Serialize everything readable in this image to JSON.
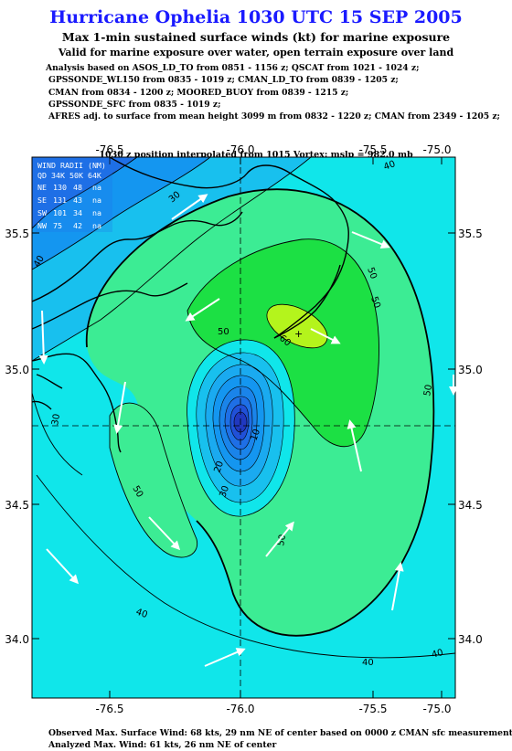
{
  "header": {
    "title": "Hurricane Ophelia 1030 UTC 15 SEP 2005",
    "subtitle": "Max 1-min sustained surface winds (kt) for marine exposure",
    "subtitle2": "Valid for marine exposure over water, open terrain exposure over land"
  },
  "analysis_lines": [
    "Analysis based on  ASOS_LD_TO from 0851 - 1156 z;  QSCAT from 1021 - 1024 z;",
    "GPSSONDE_WL150 from 0835 - 1019 z;  CMAN_LD_TO from 0839 - 1205 z;",
    "CMAN from 0834 - 1200 z;  MOORED_BUOY from 0839 - 1215 z;",
    "GPSSONDE_SFC from 0835 - 1019 z;",
    "AFRES adj. to surface from mean height 3099 m from 0832 - 1220 z;  CMAN from 2349 - 1205 z;"
  ],
  "vortex_line": "1030 z position interpolated from 1015 Vortex; mslp = 982.0 mb",
  "map": {
    "lon_ticks": [
      "-76.5",
      "-76.0",
      "-75.5",
      "-75.0"
    ],
    "lat_ticks": [
      "35.5",
      "35.0",
      "34.5",
      "34.0"
    ],
    "center": {
      "lon": -75.92,
      "lat": 34.78
    },
    "wind_radii": {
      "header1": "WIND RADII (NM)",
      "header2": "QD 34K 50K 64K",
      "rows": [
        {
          "quadrant": "NE",
          "r34": "130",
          "r50": "48",
          "r64": "na"
        },
        {
          "quadrant": "SE",
          "r34": "131",
          "r50": "43",
          "r64": "na"
        },
        {
          "quadrant": "SW",
          "r34": "101",
          "r50": "34",
          "r64": "na"
        },
        {
          "quadrant": "NW",
          "r34": "75",
          "r50": "42",
          "r64": "na"
        }
      ]
    },
    "contour_labels": [
      "40",
      "30",
      "40",
      "50",
      "50",
      "50",
      "60",
      "30",
      "50",
      "10",
      "20",
      "30",
      "50",
      "40",
      "40",
      "40",
      "50"
    ],
    "colors": {
      "deep_blue": "#1e6fe6",
      "mid_blue": "#1496f0",
      "light_blue": "#18c0ee",
      "cyan": "#10e6ea",
      "green_light": "#3cec94",
      "green": "#1ce044",
      "yellow_green": "#b4f41c"
    }
  },
  "footer": {
    "observed": "Observed Max. Surface Wind: 68 kts, 29 nm NE of center based on 0000 z CMAN sfc measurement",
    "analyzed": "Analyzed Max. Wind: 61 kts, 26 nm NE of center"
  }
}
